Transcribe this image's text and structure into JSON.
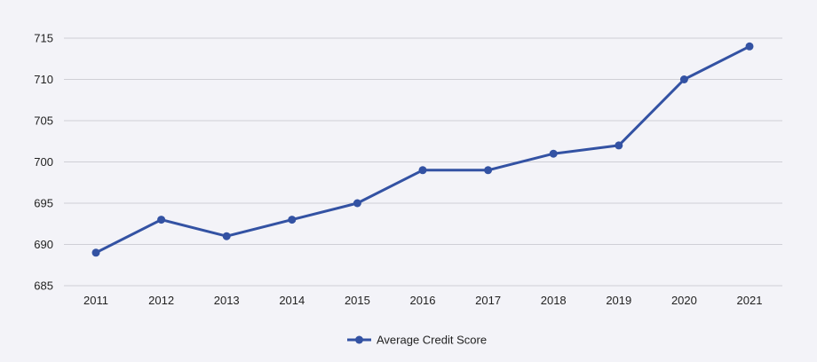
{
  "chart_data": {
    "type": "line",
    "title": "",
    "xlabel": "",
    "ylabel": "",
    "categories": [
      "2011",
      "2012",
      "2013",
      "2014",
      "2015",
      "2016",
      "2017",
      "2018",
      "2019",
      "2020",
      "2021"
    ],
    "series": [
      {
        "name": "Average Credit Score",
        "values": [
          689,
          693,
          691,
          693,
          695,
          699,
          699,
          701,
          702,
          710,
          714
        ]
      }
    ],
    "ylim": [
      685,
      715
    ],
    "yticks": [
      685,
      690,
      695,
      700,
      705,
      710,
      715
    ],
    "grid": true,
    "legend_position": "bottom-center"
  },
  "colors": {
    "series": "#3352a3",
    "grid": "#cfcfd6",
    "background": "#f3f3f8",
    "text": "#222222"
  }
}
